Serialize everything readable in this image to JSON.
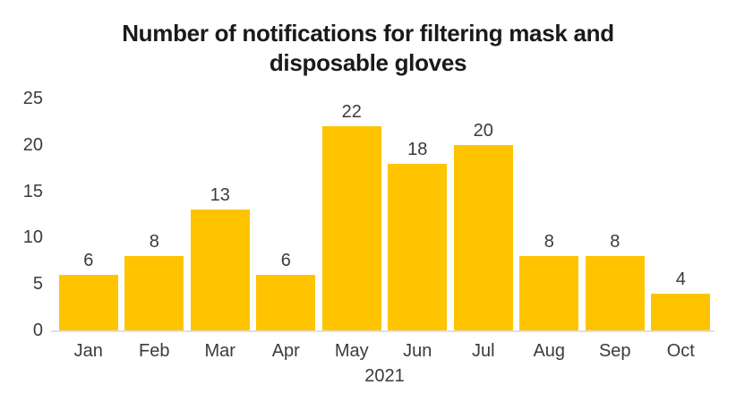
{
  "colors": {
    "background": "#FFFFFF",
    "bar": "#FFC400",
    "title_text": "#1A1A1A",
    "tick_text": "#3B3B3B",
    "axis_line": "#E0E0E0"
  },
  "chart_data": {
    "type": "bar",
    "title": "Number of notifications for filtering mask and disposable gloves",
    "title_lines": [
      "Number of notifications for filtering mask and",
      "disposable gloves"
    ],
    "categories": [
      "Jan",
      "Feb",
      "Mar",
      "Apr",
      "May",
      "Jun",
      "Jul",
      "Aug",
      "Sep",
      "Oct"
    ],
    "values": [
      6,
      8,
      13,
      6,
      22,
      18,
      20,
      8,
      8,
      4
    ],
    "xlabel": "2021",
    "ylabel": "",
    "ylim": [
      0,
      25
    ],
    "yticks": [
      0,
      5,
      10,
      15,
      20,
      25
    ],
    "grid": false,
    "legend": false,
    "data_labels": true
  }
}
